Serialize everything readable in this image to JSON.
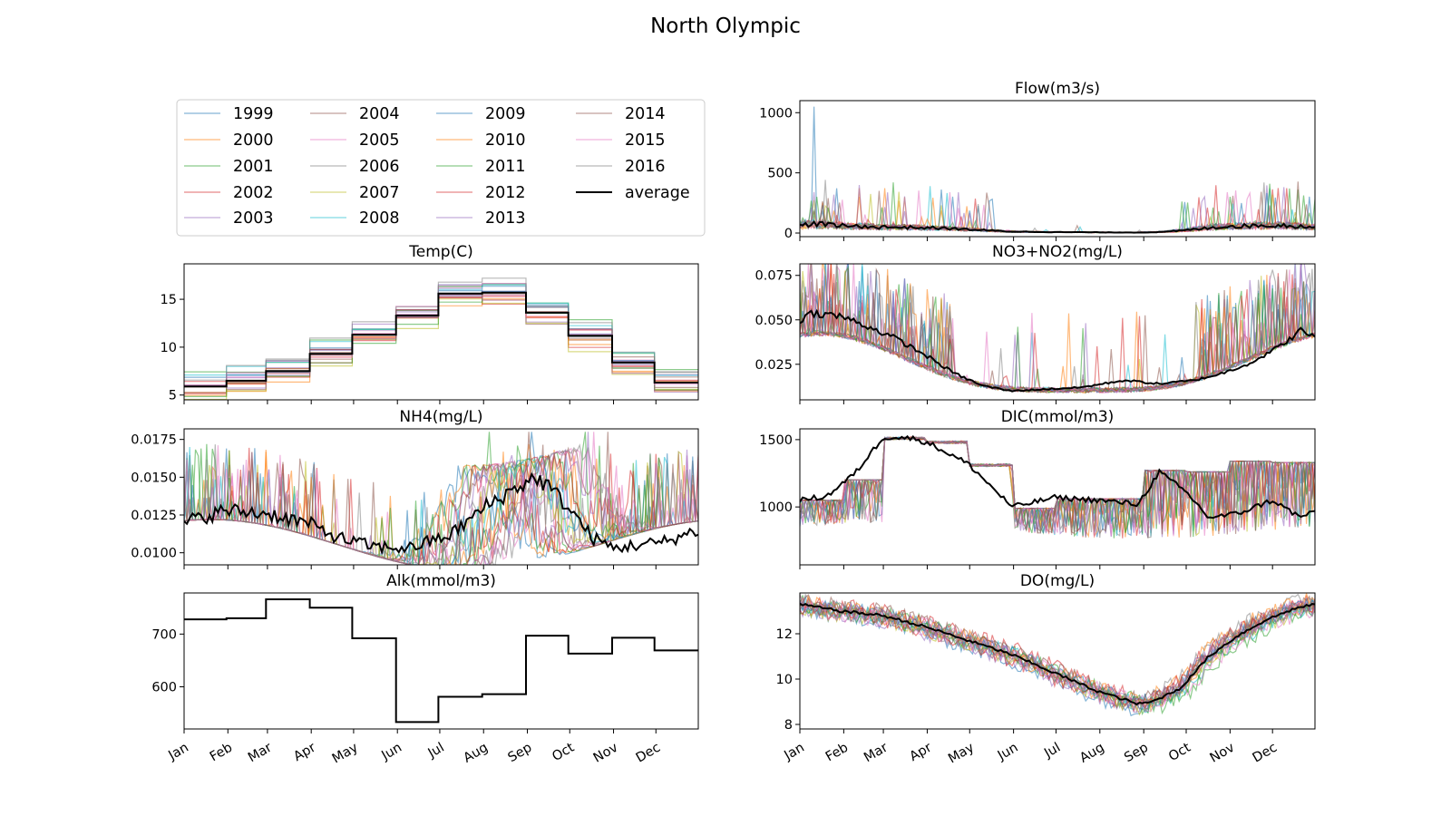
{
  "figure": {
    "title": "North Olympic"
  },
  "colors": {
    "years": [
      "#1f77b4",
      "#ff7f0e",
      "#2ca02c",
      "#d62728",
      "#9467bd",
      "#8c564b",
      "#e377c2",
      "#7f7f7f",
      "#bcbd22",
      "#17becf",
      "#1f77b4",
      "#ff7f0e",
      "#2ca02c",
      "#d62728",
      "#9467bd",
      "#8c564b",
      "#e377c2",
      "#7f7f7f"
    ],
    "average": "#000000"
  },
  "legend": {
    "placement": "upper-left panel",
    "entries": [
      "1999",
      "2000",
      "2001",
      "2002",
      "2003",
      "2004",
      "2005",
      "2006",
      "2007",
      "2008",
      "2009",
      "2010",
      "2011",
      "2012",
      "2013",
      "2014",
      "2015",
      "2016",
      "average"
    ]
  },
  "chart_data": [
    {
      "type": "line",
      "title": "Temp(C)",
      "x_tick_labels": [
        "Jan",
        "Feb",
        "Mar",
        "Apr",
        "May",
        "Jun",
        "Jul",
        "Aug",
        "Sep",
        "Oct",
        "Nov",
        "Dec"
      ],
      "xlim": [
        1,
        365
      ],
      "ylim": [
        4.5,
        18.7
      ],
      "yticks": [
        5,
        10,
        15
      ],
      "average_monthly": [
        5.9,
        6.5,
        7.5,
        9.3,
        11.3,
        13.3,
        15.6,
        15.7,
        13.6,
        11.2,
        8.4,
        6.3
      ],
      "years_spread": 1.2
    },
    {
      "type": "line",
      "title": "NH4(mg/L)",
      "x_tick_labels": [
        "Jan",
        "Feb",
        "Mar",
        "Apr",
        "May",
        "Jun",
        "Jul",
        "Aug",
        "Sep",
        "Oct",
        "Nov",
        "Dec"
      ],
      "xlim": [
        1,
        365
      ],
      "ylim": [
        0.0092,
        0.0182
      ],
      "yticks": [
        "0.0100",
        "0.0125",
        "0.0150",
        "0.0175"
      ],
      "average_approx": [
        [
          1,
          0.012
        ],
        [
          30,
          0.0128
        ],
        [
          60,
          0.0126
        ],
        [
          90,
          0.0119
        ],
        [
          110,
          0.011
        ],
        [
          135,
          0.0104
        ],
        [
          160,
          0.0103
        ],
        [
          190,
          0.0112
        ],
        [
          215,
          0.0131
        ],
        [
          240,
          0.0145
        ],
        [
          250,
          0.015
        ],
        [
          260,
          0.0143
        ],
        [
          275,
          0.0128
        ],
        [
          290,
          0.011
        ],
        [
          305,
          0.0103
        ],
        [
          320,
          0.0105
        ],
        [
          340,
          0.0107
        ],
        [
          365,
          0.0115
        ]
      ]
    },
    {
      "type": "line",
      "title": "Alk(mmol/m3)",
      "x_tick_labels": [
        "Jan",
        "Feb",
        "Mar",
        "Apr",
        "May",
        "Jun",
        "Jul",
        "Aug",
        "Sep",
        "Oct",
        "Nov",
        "Dec"
      ],
      "xlim": [
        1,
        365
      ],
      "ylim": [
        520,
        778
      ],
      "yticks": [
        600,
        700
      ],
      "average_monthly": [
        728,
        730,
        766,
        750,
        692,
        533,
        581,
        586,
        697,
        663,
        693,
        669
      ]
    },
    {
      "type": "line",
      "title": "Flow(m3/s)",
      "x_tick_labels": [
        "Jan",
        "Feb",
        "Mar",
        "Apr",
        "May",
        "Jun",
        "Jul",
        "Aug",
        "Sep",
        "Oct",
        "Nov",
        "Dec"
      ],
      "xlim": [
        1,
        365
      ],
      "ylim": [
        -30,
        1100
      ],
      "yticks": [
        0,
        500,
        1000
      ],
      "average_approx": [
        [
          1,
          60
        ],
        [
          10,
          80
        ],
        [
          30,
          60
        ],
        [
          60,
          50
        ],
        [
          90,
          45
        ],
        [
          120,
          30
        ],
        [
          150,
          12
        ],
        [
          180,
          8
        ],
        [
          210,
          6
        ],
        [
          240,
          4
        ],
        [
          260,
          10
        ],
        [
          280,
          30
        ],
        [
          300,
          55
        ],
        [
          320,
          60
        ],
        [
          340,
          65
        ],
        [
          365,
          50
        ]
      ]
    },
    {
      "type": "line",
      "title": "NO3+NO2(mg/L)",
      "x_tick_labels": [
        "Jan",
        "Feb",
        "Mar",
        "Apr",
        "May",
        "Jun",
        "Jul",
        "Aug",
        "Sep",
        "Oct",
        "Nov",
        "Dec"
      ],
      "xlim": [
        1,
        365
      ],
      "ylim": [
        0.005,
        0.0815
      ],
      "yticks": [
        "0.025",
        "0.050",
        "0.075"
      ],
      "average_approx": [
        [
          1,
          0.05
        ],
        [
          10,
          0.054
        ],
        [
          30,
          0.052
        ],
        [
          50,
          0.046
        ],
        [
          70,
          0.039
        ],
        [
          90,
          0.03
        ],
        [
          110,
          0.02
        ],
        [
          130,
          0.013
        ],
        [
          150,
          0.01
        ],
        [
          175,
          0.011
        ],
        [
          200,
          0.012
        ],
        [
          230,
          0.016
        ],
        [
          255,
          0.014
        ],
        [
          280,
          0.016
        ],
        [
          300,
          0.02
        ],
        [
          320,
          0.026
        ],
        [
          340,
          0.035
        ],
        [
          355,
          0.044
        ],
        [
          365,
          0.04
        ]
      ]
    },
    {
      "type": "line",
      "title": "DIC(mmol/m3)",
      "x_tick_labels": [
        "Jan",
        "Feb",
        "Mar",
        "Apr",
        "May",
        "Jun",
        "Jul",
        "Aug",
        "Sep",
        "Oct",
        "Nov",
        "Dec"
      ],
      "xlim": [
        1,
        365
      ],
      "ylim": [
        570,
        1580
      ],
      "yticks": [
        1000,
        1500
      ],
      "average_approx": [
        [
          1,
          1050
        ],
        [
          20,
          1080
        ],
        [
          40,
          1250
        ],
        [
          60,
          1520
        ],
        [
          80,
          1510
        ],
        [
          91,
          1480
        ],
        [
          120,
          1320
        ],
        [
          151,
          1000
        ],
        [
          181,
          1070
        ],
        [
          212,
          1050
        ],
        [
          240,
          1020
        ],
        [
          255,
          1260
        ],
        [
          275,
          1100
        ],
        [
          290,
          920
        ],
        [
          310,
          950
        ],
        [
          335,
          1050
        ],
        [
          355,
          920
        ],
        [
          365,
          980
        ]
      ]
    },
    {
      "type": "line",
      "title": "DO(mg/L)",
      "x_tick_labels": [
        "Jan",
        "Feb",
        "Mar",
        "Apr",
        "May",
        "Jun",
        "Jul",
        "Aug",
        "Sep",
        "Oct",
        "Nov",
        "Dec"
      ],
      "xlim": [
        1,
        365
      ],
      "ylim": [
        7.8,
        13.8
      ],
      "yticks": [
        8,
        10,
        12
      ],
      "average_approx": [
        [
          1,
          13.3
        ],
        [
          30,
          13.0
        ],
        [
          60,
          12.8
        ],
        [
          90,
          12.3
        ],
        [
          120,
          11.7
        ],
        [
          150,
          11.1
        ],
        [
          180,
          10.3
        ],
        [
          210,
          9.5
        ],
        [
          240,
          8.9
        ],
        [
          250,
          9.0
        ],
        [
          270,
          9.6
        ],
        [
          290,
          11.0
        ],
        [
          310,
          11.9
        ],
        [
          330,
          12.6
        ],
        [
          350,
          13.1
        ],
        [
          365,
          13.3
        ]
      ]
    }
  ]
}
